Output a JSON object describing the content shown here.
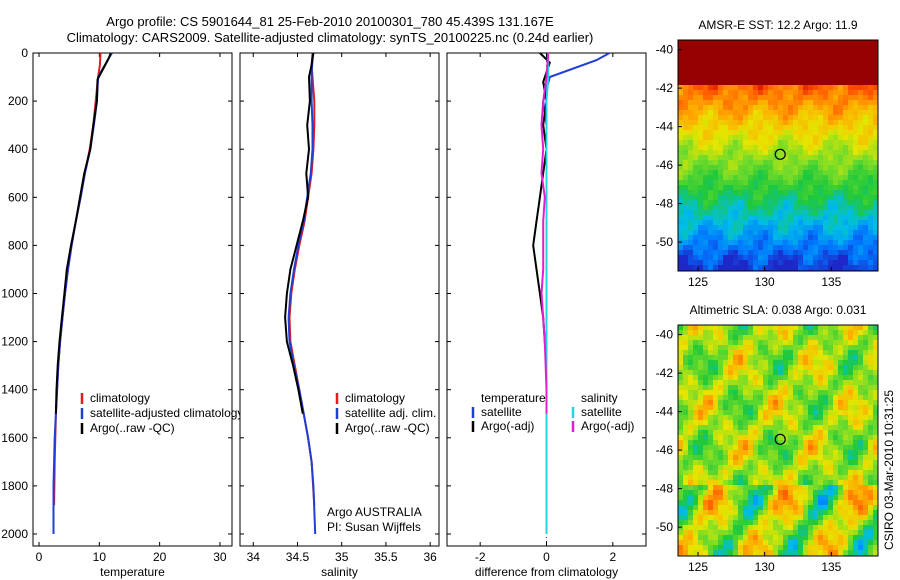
{
  "header": {
    "line1": "Argo profile: CS 5901644_81 25-Feb-2010 20100301_780 45.439S 131.167E",
    "line2": "Climatology: CARS2009. Satellite-adjusted climatology: synTS_20100225.nc (0.24d earlier)"
  },
  "side_stamp": "CSIRO 03-Mar-2010 10:31:25",
  "chart_data": [
    {
      "type": "line",
      "xlabel": "temperature",
      "ylabel": "",
      "xlim": [
        -1,
        32
      ],
      "ylim": [
        2050,
        0
      ],
      "xticks": [
        0,
        10,
        20,
        30
      ],
      "yticks": [
        0,
        200,
        400,
        600,
        800,
        1000,
        1200,
        1400,
        1600,
        1800,
        2000
      ],
      "legend": [
        "climatology",
        "satellite-adjusted climatology",
        "Argo(..raw -QC)"
      ],
      "series": [
        {
          "name": "climatology",
          "color": "#e41a1c",
          "x": [
            10.2,
            10.1,
            9.8,
            9.4,
            9.0,
            8.4,
            7.6,
            6.9,
            6.1,
            5.4,
            4.8,
            4.3,
            3.9,
            3.5,
            3.2,
            3.0,
            2.8,
            2.7,
            2.6,
            2.5
          ],
          "y": [
            0,
            50,
            100,
            200,
            300,
            400,
            500,
            600,
            700,
            800,
            900,
            1000,
            1100,
            1200,
            1300,
            1400,
            1500,
            1600,
            1700,
            1880
          ]
        },
        {
          "name": "satellite-adjusted climatology",
          "color": "#1f3fd6",
          "x": [
            12.1,
            11.6,
            9.8,
            9.6,
            9.1,
            8.5,
            7.6,
            6.9,
            6.1,
            5.4,
            4.8,
            4.3,
            3.9,
            3.5,
            3.2,
            3.0,
            2.8,
            2.6,
            2.5,
            2.4,
            2.4
          ],
          "y": [
            0,
            20,
            100,
            200,
            300,
            400,
            500,
            600,
            700,
            800,
            900,
            1000,
            1100,
            1200,
            1300,
            1400,
            1500,
            1600,
            1700,
            1800,
            2000
          ]
        },
        {
          "name": "Argo(..raw -QC)",
          "color": "#000000",
          "x": [
            11.9,
            11.5,
            9.7,
            9.6,
            9.0,
            8.5,
            7.5,
            6.8,
            6.1,
            5.3,
            4.6,
            4.2,
            3.8,
            3.4,
            3.1,
            2.9,
            2.8
          ],
          "y": [
            0,
            25,
            110,
            200,
            300,
            400,
            500,
            600,
            700,
            800,
            900,
            1000,
            1100,
            1200,
            1300,
            1400,
            1500
          ]
        }
      ]
    },
    {
      "type": "line",
      "xlabel": "salinity",
      "ylabel": "",
      "xlim": [
        33.85,
        36.1
      ],
      "ylim": [
        2050,
        0
      ],
      "xticks": [
        34,
        34.5,
        35,
        35.5,
        36
      ],
      "yticks": [
        0,
        200,
        400,
        600,
        800,
        1000,
        1200,
        1400,
        1600,
        1800,
        2000
      ],
      "legend": [
        "climatology",
        "satellite adj. clim.",
        "Argo(..raw -QC)"
      ],
      "annotations": [
        "Argo AUSTRALIA",
        "PI: Susan Wijffels"
      ],
      "series": [
        {
          "name": "climatology",
          "color": "#e41a1c",
          "x": [
            34.67,
            34.66,
            34.67,
            34.69,
            34.69,
            34.68,
            34.66,
            34.62,
            34.58,
            34.52,
            34.47,
            34.43,
            34.41,
            34.42,
            34.47,
            34.52,
            34.57,
            34.62,
            34.66,
            34.69
          ],
          "y": [
            0,
            50,
            100,
            200,
            300,
            400,
            500,
            600,
            700,
            800,
            900,
            1000,
            1100,
            1200,
            1300,
            1400,
            1500,
            1600,
            1700,
            1880
          ]
        },
        {
          "name": "satellite adj. clim.",
          "color": "#1f3fd6",
          "x": [
            34.68,
            34.67,
            34.66,
            34.66,
            34.67,
            34.67,
            34.65,
            34.61,
            34.57,
            34.51,
            34.46,
            34.42,
            34.4,
            34.41,
            34.46,
            34.52,
            34.57,
            34.62,
            34.66,
            34.68,
            34.7
          ],
          "y": [
            0,
            20,
            100,
            200,
            300,
            400,
            500,
            600,
            700,
            800,
            900,
            1000,
            1100,
            1200,
            1300,
            1400,
            1500,
            1600,
            1700,
            1800,
            2000
          ]
        },
        {
          "name": "Argo(..raw -QC)",
          "color": "#000000",
          "x": [
            34.68,
            34.66,
            34.63,
            34.64,
            34.61,
            34.63,
            34.6,
            34.62,
            34.56,
            34.49,
            34.42,
            34.38,
            34.36,
            34.38,
            34.45,
            34.51,
            34.56
          ],
          "y": [
            0,
            50,
            100,
            200,
            300,
            400,
            500,
            600,
            700,
            800,
            900,
            1000,
            1100,
            1200,
            1300,
            1400,
            1500
          ]
        }
      ]
    },
    {
      "type": "line",
      "xlabel": "difference from climatology",
      "ylabel": "",
      "xlim": [
        -3,
        3
      ],
      "ylim": [
        2050,
        0
      ],
      "xticks": [
        -2,
        0,
        2
      ],
      "yticks": [
        0,
        200,
        400,
        600,
        800,
        1000,
        1200,
        1400,
        1600,
        1800,
        2000
      ],
      "legend": [
        "temperature",
        "satellite",
        "Argo(-adj)",
        "salinity",
        "satellite",
        "Argo(-adj)"
      ],
      "series": [
        {
          "name": "satellite",
          "group": "temperature",
          "color": "#1f3fd6",
          "x": [
            1.9,
            1.5,
            0.1,
            -0.1,
            0.0,
            0.0,
            0.0,
            0.0,
            0.0,
            0.0,
            0.0,
            0.0,
            0.0,
            0.0,
            0.0,
            0.0,
            0.0
          ],
          "y": [
            0,
            30,
            100,
            200,
            300,
            400,
            500,
            600,
            700,
            800,
            900,
            1000,
            1100,
            1200,
            1400,
            1600,
            2000
          ]
        },
        {
          "name": "Argo(-adj)",
          "group": "temperature",
          "color": "#000000",
          "x": [
            -0.2,
            0.1,
            -0.1,
            0.0,
            -0.1,
            0.0,
            -0.1,
            -0.2,
            -0.3,
            -0.4,
            -0.3,
            -0.2,
            -0.1,
            -0.05,
            0.0,
            0.0
          ],
          "y": [
            0,
            40,
            120,
            200,
            300,
            400,
            500,
            600,
            700,
            800,
            900,
            1000,
            1100,
            1200,
            1300,
            1500
          ]
        },
        {
          "name": "satellite",
          "group": "salinity",
          "color": "#22d4e0",
          "x": [
            0.05,
            0.05,
            0.0,
            0.0,
            0.0,
            0.0,
            0.0,
            0.0,
            0.0,
            0.0,
            0.0,
            0.0,
            0.0,
            0.0,
            0.0
          ],
          "y": [
            0,
            100,
            200,
            300,
            400,
            500,
            600,
            700,
            800,
            1000,
            1200,
            1400,
            1600,
            1800,
            2000
          ]
        },
        {
          "name": "Argo(-adj)",
          "group": "salinity",
          "color": "#e020d0",
          "x": [
            0.05,
            0.0,
            -0.1,
            -0.15,
            -0.1,
            -0.15,
            -0.05,
            -0.1,
            -0.1,
            -0.1,
            -0.15,
            -0.1,
            -0.05,
            0.0,
            0.0
          ],
          "y": [
            0,
            100,
            200,
            300,
            400,
            500,
            600,
            700,
            800,
            900,
            1000,
            1100,
            1200,
            1400,
            1500
          ]
        }
      ]
    },
    {
      "type": "heatmap",
      "title": "AMSR-E SST: 12.2 Argo: 11.9",
      "xlim": [
        123.5,
        138.5
      ],
      "ylim": [
        -51.5,
        -39.5
      ],
      "xticks": [
        125,
        130,
        135
      ],
      "yticks": [
        -40,
        -42,
        -44,
        -46,
        -48,
        -50
      ],
      "argo_position": {
        "lon": 131.167,
        "lat": -45.439
      }
    },
    {
      "type": "heatmap",
      "title": "Altimetric SLA: 0.038 Argo: 0.031",
      "xlim": [
        123.5,
        138.5
      ],
      "ylim": [
        -51.5,
        -39.5
      ],
      "xticks": [
        125,
        130,
        135
      ],
      "yticks": [
        -40,
        -42,
        -44,
        -46,
        -48,
        -50
      ],
      "argo_position": {
        "lon": 131.167,
        "lat": -45.439
      }
    }
  ]
}
